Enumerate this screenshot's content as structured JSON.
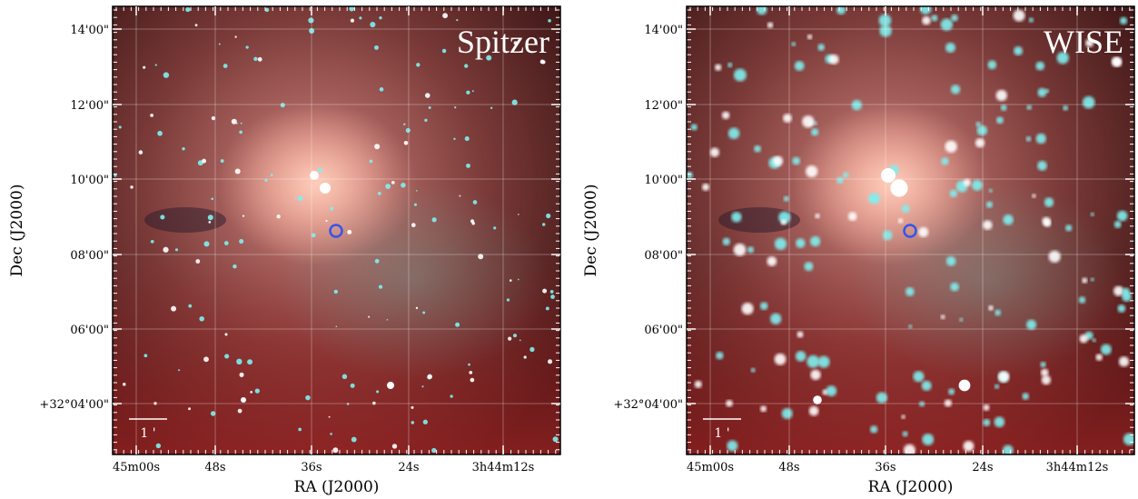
{
  "panels": [
    {
      "title": "Spitzer",
      "scale_bar": "1 '",
      "x_axis": {
        "label": "RA (J2000)",
        "ticks": [
          "45m00s",
          "48s",
          "36s",
          "24s",
          "3h44m12s"
        ]
      },
      "y_axis": {
        "label": "Dec (J2000)",
        "ticks": [
          "14'00\"",
          "12'00\"",
          "10'00\"",
          "08'00\"",
          "06'00\"",
          "+32°04'00\""
        ]
      }
    },
    {
      "title": "WISE",
      "scale_bar": "1 '",
      "x_axis": {
        "label": "RA (J2000)",
        "ticks": [
          "45m00s",
          "48s",
          "36s",
          "24s",
          "3h44m12s"
        ]
      },
      "y_axis": {
        "label": "Dec (J2000)",
        "ticks": [
          "14'00\"",
          "12'00\"",
          "10'00\"",
          "08'00\"",
          "06'00\"",
          "+32°04'00\""
        ]
      }
    }
  ]
}
